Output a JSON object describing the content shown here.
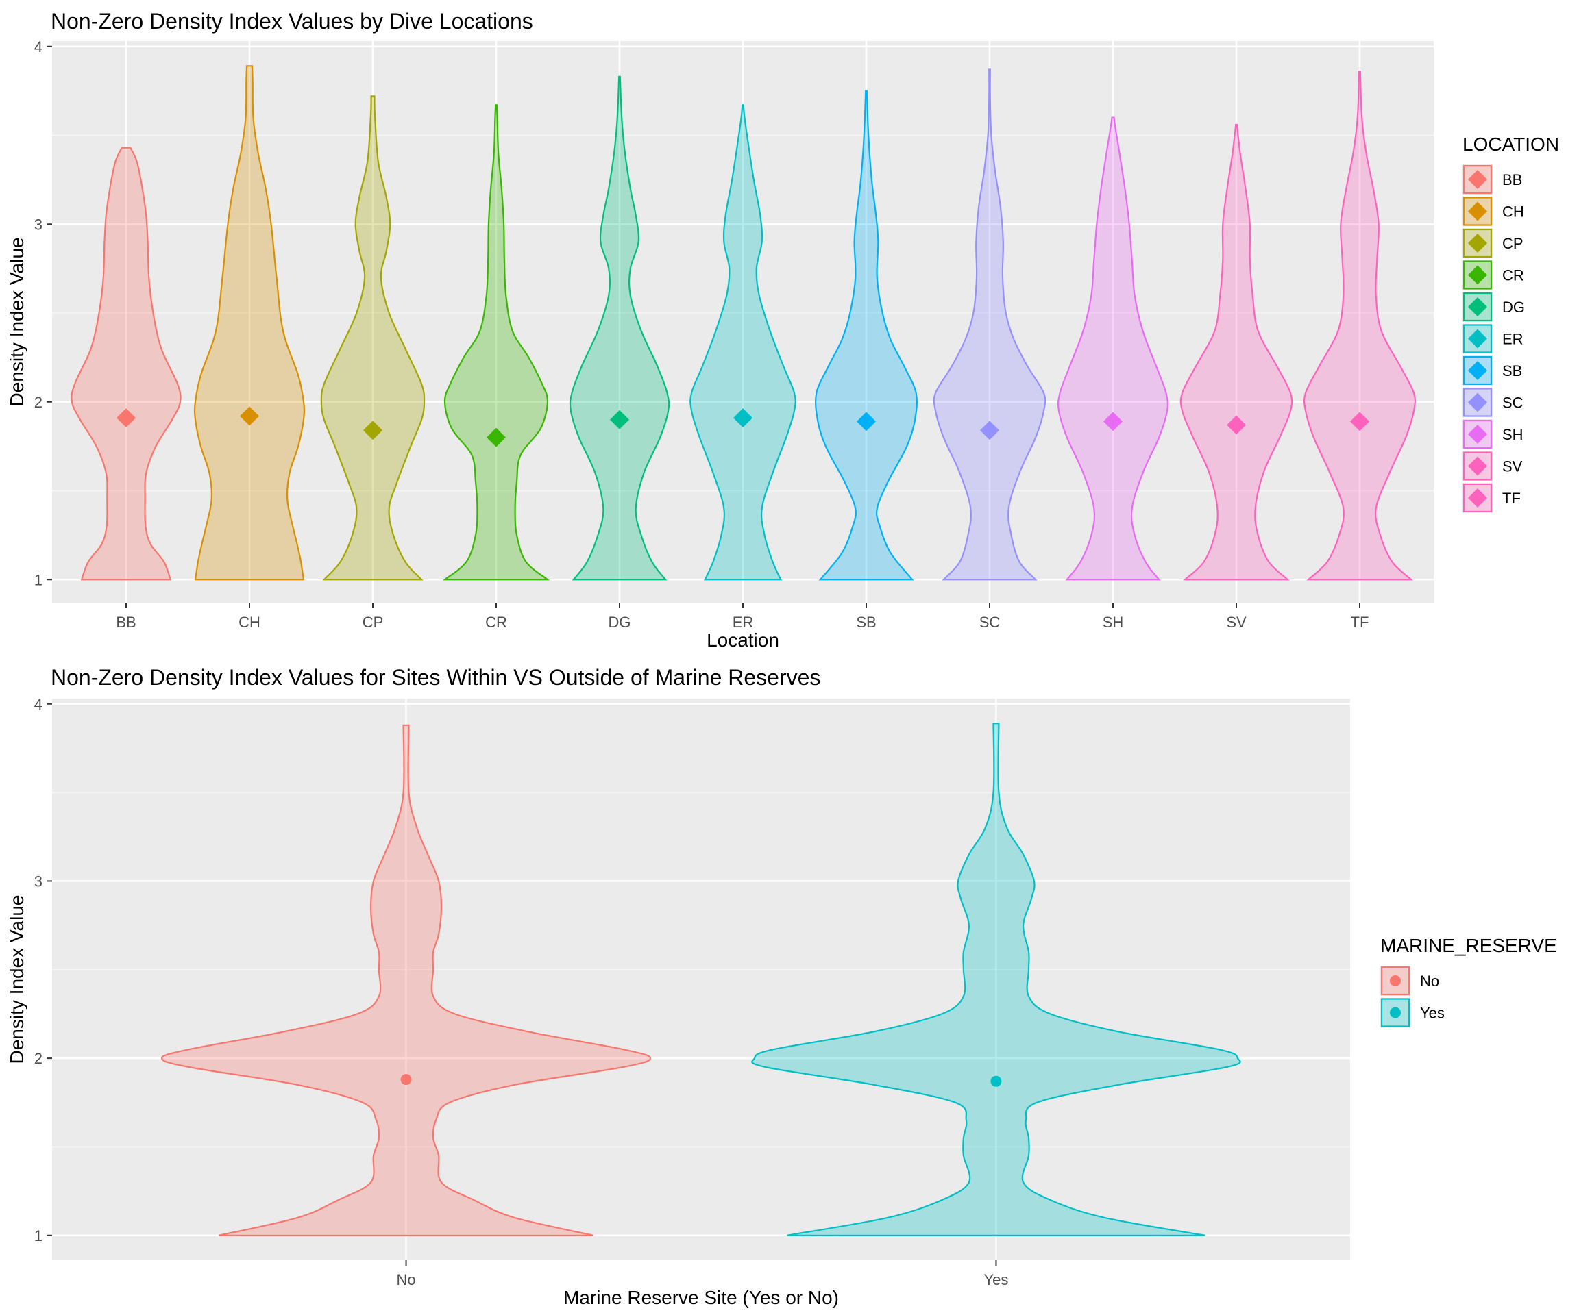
{
  "chart_data": [
    {
      "type": "violin",
      "title": "Non-Zero Density Index Values by Dive Locations",
      "xlabel": "Location",
      "ylabel": "Density Index Value",
      "ylim": [
        0.87,
        4.03
      ],
      "yticks": [
        1,
        2,
        3,
        4
      ],
      "grid": true,
      "legend": {
        "title": "LOCATION",
        "position": "right",
        "marker": "diamond"
      },
      "categories": [
        "BB",
        "CH",
        "CP",
        "CR",
        "DG",
        "ER",
        "SB",
        "SC",
        "SH",
        "SV",
        "TF"
      ],
      "colors": [
        "#F8766D",
        "#D89000",
        "#A3A500",
        "#39B600",
        "#00BF7D",
        "#00BFC4",
        "#00B0F6",
        "#9590FF",
        "#E76BF3",
        "#FF62BC",
        "#FF62BC"
      ],
      "series": [
        {
          "name": "BB",
          "color": "#F8766D",
          "mean": 1.91,
          "max": 3.43,
          "profile": [
            [
              1.0,
              0.82
            ],
            [
              1.1,
              0.7
            ],
            [
              1.2,
              0.45
            ],
            [
              1.3,
              0.36
            ],
            [
              1.45,
              0.35
            ],
            [
              1.6,
              0.37
            ],
            [
              1.75,
              0.55
            ],
            [
              1.9,
              0.85
            ],
            [
              2.0,
              1.0
            ],
            [
              2.1,
              0.95
            ],
            [
              2.3,
              0.65
            ],
            [
              2.5,
              0.5
            ],
            [
              2.7,
              0.42
            ],
            [
              2.9,
              0.4
            ],
            [
              3.05,
              0.37
            ],
            [
              3.2,
              0.3
            ],
            [
              3.35,
              0.2
            ],
            [
              3.43,
              0.08
            ]
          ]
        },
        {
          "name": "CH",
          "color": "#D89000",
          "mean": 1.92,
          "max": 3.89,
          "profile": [
            [
              1.0,
              1.0
            ],
            [
              1.1,
              0.95
            ],
            [
              1.2,
              0.88
            ],
            [
              1.3,
              0.8
            ],
            [
              1.45,
              0.7
            ],
            [
              1.6,
              0.74
            ],
            [
              1.75,
              0.9
            ],
            [
              1.9,
              1.0
            ],
            [
              2.0,
              1.0
            ],
            [
              2.15,
              0.9
            ],
            [
              2.4,
              0.62
            ],
            [
              2.7,
              0.5
            ],
            [
              3.0,
              0.4
            ],
            [
              3.2,
              0.3
            ],
            [
              3.4,
              0.16
            ],
            [
              3.6,
              0.07
            ],
            [
              3.8,
              0.06
            ],
            [
              3.89,
              0.05
            ]
          ]
        },
        {
          "name": "CP",
          "color": "#A3A500",
          "mean": 1.84,
          "max": 3.72,
          "profile": [
            [
              1.0,
              0.9
            ],
            [
              1.1,
              0.6
            ],
            [
              1.25,
              0.38
            ],
            [
              1.4,
              0.3
            ],
            [
              1.55,
              0.45
            ],
            [
              1.75,
              0.7
            ],
            [
              1.9,
              0.9
            ],
            [
              2.0,
              0.95
            ],
            [
              2.1,
              0.9
            ],
            [
              2.3,
              0.6
            ],
            [
              2.5,
              0.3
            ],
            [
              2.7,
              0.15
            ],
            [
              2.85,
              0.25
            ],
            [
              3.0,
              0.32
            ],
            [
              3.15,
              0.25
            ],
            [
              3.35,
              0.1
            ],
            [
              3.6,
              0.04
            ],
            [
              3.72,
              0.03
            ]
          ]
        },
        {
          "name": "CR",
          "color": "#39B600",
          "mean": 1.8,
          "max": 3.67,
          "profile": [
            [
              1.0,
              0.95
            ],
            [
              1.1,
              0.55
            ],
            [
              1.25,
              0.38
            ],
            [
              1.4,
              0.35
            ],
            [
              1.55,
              0.38
            ],
            [
              1.7,
              0.45
            ],
            [
              1.85,
              0.82
            ],
            [
              2.0,
              0.95
            ],
            [
              2.1,
              0.85
            ],
            [
              2.25,
              0.6
            ],
            [
              2.4,
              0.3
            ],
            [
              2.6,
              0.18
            ],
            [
              2.8,
              0.15
            ],
            [
              3.0,
              0.14
            ],
            [
              3.2,
              0.1
            ],
            [
              3.4,
              0.04
            ],
            [
              3.6,
              0.02
            ],
            [
              3.67,
              0.01
            ]
          ]
        },
        {
          "name": "DG",
          "color": "#00BF7D",
          "mean": 1.9,
          "max": 3.83,
          "profile": [
            [
              1.0,
              0.85
            ],
            [
              1.1,
              0.6
            ],
            [
              1.25,
              0.4
            ],
            [
              1.4,
              0.3
            ],
            [
              1.6,
              0.45
            ],
            [
              1.8,
              0.75
            ],
            [
              1.95,
              0.9
            ],
            [
              2.05,
              0.88
            ],
            [
              2.2,
              0.7
            ],
            [
              2.4,
              0.4
            ],
            [
              2.6,
              0.2
            ],
            [
              2.75,
              0.2
            ],
            [
              2.9,
              0.35
            ],
            [
              3.05,
              0.3
            ],
            [
              3.2,
              0.2
            ],
            [
              3.4,
              0.1
            ],
            [
              3.6,
              0.04
            ],
            [
              3.83,
              0.01
            ]
          ]
        },
        {
          "name": "ER",
          "color": "#00BFC4",
          "mean": 1.91,
          "max": 3.67,
          "profile": [
            [
              1.0,
              0.7
            ],
            [
              1.1,
              0.55
            ],
            [
              1.25,
              0.4
            ],
            [
              1.4,
              0.35
            ],
            [
              1.6,
              0.55
            ],
            [
              1.8,
              0.8
            ],
            [
              1.95,
              0.95
            ],
            [
              2.05,
              0.95
            ],
            [
              2.2,
              0.75
            ],
            [
              2.4,
              0.5
            ],
            [
              2.6,
              0.3
            ],
            [
              2.75,
              0.25
            ],
            [
              2.9,
              0.35
            ],
            [
              3.05,
              0.32
            ],
            [
              3.25,
              0.2
            ],
            [
              3.45,
              0.1
            ],
            [
              3.6,
              0.03
            ],
            [
              3.67,
              0.01
            ]
          ]
        },
        {
          "name": "SB",
          "color": "#00B0F6",
          "mean": 1.89,
          "max": 3.75,
          "profile": [
            [
              1.0,
              0.85
            ],
            [
              1.15,
              0.45
            ],
            [
              1.3,
              0.25
            ],
            [
              1.4,
              0.2
            ],
            [
              1.55,
              0.4
            ],
            [
              1.75,
              0.75
            ],
            [
              1.9,
              0.9
            ],
            [
              2.05,
              0.92
            ],
            [
              2.2,
              0.7
            ],
            [
              2.35,
              0.45
            ],
            [
              2.5,
              0.3
            ],
            [
              2.7,
              0.2
            ],
            [
              2.9,
              0.22
            ],
            [
              3.05,
              0.18
            ],
            [
              3.25,
              0.1
            ],
            [
              3.5,
              0.04
            ],
            [
              3.75,
              0.01
            ]
          ]
        },
        {
          "name": "SC",
          "color": "#9590FF",
          "mean": 1.84,
          "max": 3.87,
          "profile": [
            [
              1.0,
              0.85
            ],
            [
              1.1,
              0.55
            ],
            [
              1.25,
              0.4
            ],
            [
              1.4,
              0.35
            ],
            [
              1.6,
              0.55
            ],
            [
              1.8,
              0.85
            ],
            [
              1.95,
              1.0
            ],
            [
              2.05,
              1.0
            ],
            [
              2.2,
              0.7
            ],
            [
              2.35,
              0.45
            ],
            [
              2.5,
              0.3
            ],
            [
              2.7,
              0.24
            ],
            [
              2.9,
              0.25
            ],
            [
              3.1,
              0.2
            ],
            [
              3.3,
              0.1
            ],
            [
              3.5,
              0.03
            ],
            [
              3.7,
              0.01
            ],
            [
              3.87,
              0.01
            ]
          ]
        },
        {
          "name": "SH",
          "color": "#E76BF3",
          "mean": 1.89,
          "max": 3.6,
          "profile": [
            [
              1.0,
              0.85
            ],
            [
              1.1,
              0.6
            ],
            [
              1.25,
              0.4
            ],
            [
              1.4,
              0.35
            ],
            [
              1.6,
              0.55
            ],
            [
              1.8,
              0.85
            ],
            [
              1.95,
              1.0
            ],
            [
              2.05,
              0.98
            ],
            [
              2.2,
              0.8
            ],
            [
              2.4,
              0.55
            ],
            [
              2.6,
              0.4
            ],
            [
              2.8,
              0.35
            ],
            [
              3.0,
              0.3
            ],
            [
              3.2,
              0.22
            ],
            [
              3.4,
              0.12
            ],
            [
              3.55,
              0.04
            ],
            [
              3.6,
              0.02
            ]
          ]
        },
        {
          "name": "SV",
          "color": "#FF62BC",
          "mean": 1.87,
          "max": 3.56,
          "profile": [
            [
              1.0,
              0.95
            ],
            [
              1.1,
              0.6
            ],
            [
              1.25,
              0.4
            ],
            [
              1.4,
              0.35
            ],
            [
              1.6,
              0.5
            ],
            [
              1.8,
              0.8
            ],
            [
              1.95,
              1.0
            ],
            [
              2.05,
              1.0
            ],
            [
              2.2,
              0.75
            ],
            [
              2.4,
              0.4
            ],
            [
              2.6,
              0.3
            ],
            [
              2.8,
              0.25
            ],
            [
              3.0,
              0.25
            ],
            [
              3.2,
              0.17
            ],
            [
              3.4,
              0.07
            ],
            [
              3.56,
              0.01
            ]
          ]
        },
        {
          "name": "TF",
          "color": "#FF62BC",
          "mean": 1.89,
          "max": 3.86,
          "profile": [
            [
              1.0,
              0.95
            ],
            [
              1.1,
              0.6
            ],
            [
              1.25,
              0.38
            ],
            [
              1.4,
              0.3
            ],
            [
              1.6,
              0.55
            ],
            [
              1.8,
              0.85
            ],
            [
              1.95,
              1.0
            ],
            [
              2.05,
              1.0
            ],
            [
              2.2,
              0.75
            ],
            [
              2.4,
              0.4
            ],
            [
              2.6,
              0.3
            ],
            [
              2.8,
              0.32
            ],
            [
              3.0,
              0.35
            ],
            [
              3.2,
              0.25
            ],
            [
              3.4,
              0.12
            ],
            [
              3.6,
              0.04
            ],
            [
              3.86,
              0.01
            ]
          ]
        }
      ]
    },
    {
      "type": "violin",
      "title": "Non-Zero Density Index Values for Sites Within VS Outside of Marine Reserves",
      "xlabel": "Marine Reserve Site (Yes or No)",
      "ylabel": "Density Index Value",
      "ylim": [
        0.86,
        4.03
      ],
      "yticks": [
        1,
        2,
        3,
        4
      ],
      "grid": true,
      "legend": {
        "title": "MARINE_RESERVE",
        "position": "right",
        "marker": "circle"
      },
      "categories": [
        "No",
        "Yes"
      ],
      "series": [
        {
          "name": "No",
          "color": "#F8766D",
          "mean": 1.88,
          "max": 3.88,
          "profile": [
            [
              1.0,
              0.69
            ],
            [
              1.1,
              0.4
            ],
            [
              1.2,
              0.25
            ],
            [
              1.3,
              0.13
            ],
            [
              1.45,
              0.12
            ],
            [
              1.55,
              0.1
            ],
            [
              1.65,
              0.11
            ],
            [
              1.75,
              0.16
            ],
            [
              1.85,
              0.4
            ],
            [
              1.95,
              0.8
            ],
            [
              2.0,
              0.9
            ],
            [
              2.05,
              0.8
            ],
            [
              2.15,
              0.45
            ],
            [
              2.25,
              0.18
            ],
            [
              2.35,
              0.1
            ],
            [
              2.5,
              0.1
            ],
            [
              2.6,
              0.1
            ],
            [
              2.7,
              0.12
            ],
            [
              2.85,
              0.13
            ],
            [
              3.0,
              0.12
            ],
            [
              3.15,
              0.08
            ],
            [
              3.3,
              0.04
            ],
            [
              3.5,
              0.01
            ],
            [
              3.88,
              0.01
            ]
          ]
        },
        {
          "name": "Yes",
          "color": "#00BFC4",
          "mean": 1.87,
          "max": 3.89,
          "profile": [
            [
              1.0,
              0.77
            ],
            [
              1.1,
              0.4
            ],
            [
              1.2,
              0.2
            ],
            [
              1.3,
              0.1
            ],
            [
              1.45,
              0.12
            ],
            [
              1.55,
              0.12
            ],
            [
              1.65,
              0.11
            ],
            [
              1.75,
              0.15
            ],
            [
              1.85,
              0.45
            ],
            [
              1.95,
              0.85
            ],
            [
              2.0,
              0.89
            ],
            [
              2.05,
              0.82
            ],
            [
              2.15,
              0.45
            ],
            [
              2.25,
              0.2
            ],
            [
              2.35,
              0.12
            ],
            [
              2.5,
              0.12
            ],
            [
              2.6,
              0.12
            ],
            [
              2.75,
              0.1
            ],
            [
              2.9,
              0.13
            ],
            [
              3.0,
              0.14
            ],
            [
              3.15,
              0.1
            ],
            [
              3.3,
              0.04
            ],
            [
              3.5,
              0.01
            ],
            [
              3.89,
              0.01
            ]
          ]
        }
      ]
    }
  ]
}
